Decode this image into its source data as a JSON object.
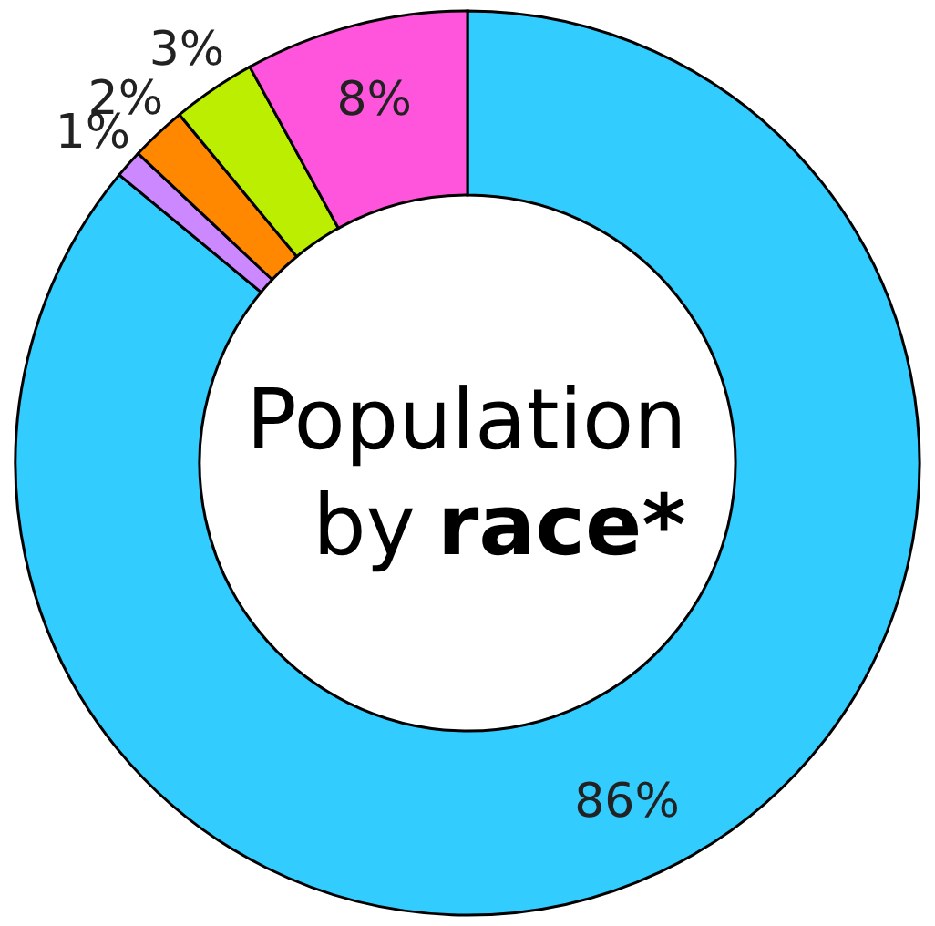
{
  "chart_data": {
    "type": "donut",
    "title": "Population by race*",
    "categories": [
      null,
      null,
      null,
      null,
      null
    ],
    "values": [
      86,
      1,
      2,
      3,
      8
    ],
    "value_labels": [
      "86%",
      "1%",
      "2%",
      "3%",
      "8%"
    ],
    "colors": [
      "#33ccff",
      "#cc88ff",
      "#ff8800",
      "#bbee00",
      "#ff55dd"
    ]
  }
}
